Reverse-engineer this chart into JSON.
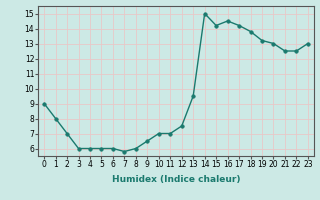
{
  "x": [
    0,
    1,
    2,
    3,
    4,
    5,
    6,
    7,
    8,
    9,
    10,
    11,
    12,
    13,
    14,
    15,
    16,
    17,
    18,
    19,
    20,
    21,
    22,
    23
  ],
  "y": [
    9,
    8,
    7,
    6,
    6,
    6,
    6,
    5.8,
    6,
    6.5,
    7,
    7,
    7.5,
    9.5,
    15,
    14.2,
    14.5,
    14.2,
    13.8,
    13.2,
    13,
    12.5,
    12.5,
    13
  ],
  "line_color": "#1a7a6e",
  "marker": "o",
  "markersize": 2.5,
  "linewidth": 1.0,
  "background_color": "#cce9e5",
  "grid_color": "#e8c8c8",
  "xlabel": "Humidex (Indice chaleur)",
  "ylim": [
    5.5,
    15.5
  ],
  "xlim": [
    -0.5,
    23.5
  ],
  "yticks": [
    6,
    7,
    8,
    9,
    10,
    11,
    12,
    13,
    14,
    15
  ],
  "xticks": [
    0,
    1,
    2,
    3,
    4,
    5,
    6,
    7,
    8,
    9,
    10,
    11,
    12,
    13,
    14,
    15,
    16,
    17,
    18,
    19,
    20,
    21,
    22,
    23
  ],
  "tick_fontsize": 5.5,
  "label_fontsize": 6.5,
  "fig_width": 3.2,
  "fig_height": 2.0,
  "dpi": 100
}
